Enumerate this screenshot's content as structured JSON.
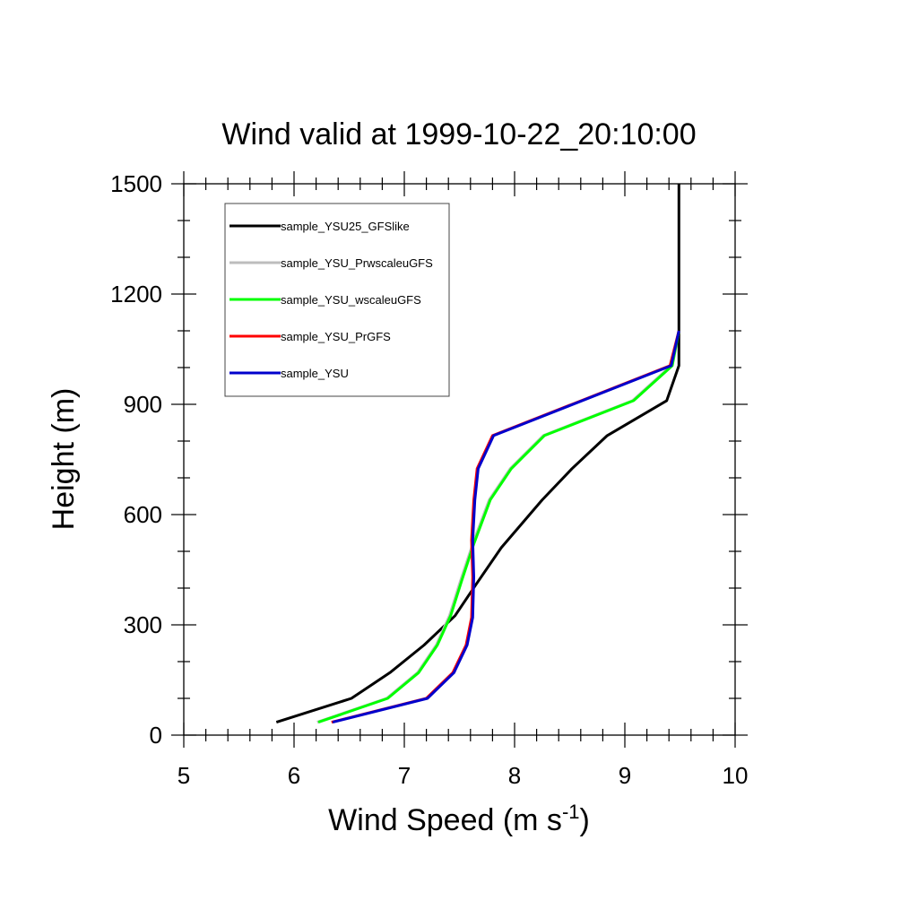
{
  "chart_data": {
    "type": "line",
    "title": "Wind valid at 1999-10-22_20:10:00",
    "xlabel": "Wind Speed (m s",
    "xlabel_superscript": "-1",
    "xlabel_suffix": ")",
    "ylabel": "Height (m)",
    "xlim": [
      5,
      10
    ],
    "ylim": [
      0,
      1500
    ],
    "x_ticks": [
      5,
      6,
      7,
      8,
      9,
      10
    ],
    "y_ticks": [
      0,
      300,
      600,
      900,
      1200,
      1500
    ],
    "x_minor_step": 0.2,
    "y_minor_step": 100,
    "grid": false,
    "legend_position": "top-left",
    "series": [
      {
        "name": "sample_YSU25_GFSlike",
        "color": "#000000",
        "points": [
          [
            5.84,
            35
          ],
          [
            6.52,
            100
          ],
          [
            6.87,
            170
          ],
          [
            7.18,
            245
          ],
          [
            7.46,
            325
          ],
          [
            7.65,
            410
          ],
          [
            7.88,
            510
          ],
          [
            8.25,
            640
          ],
          [
            8.52,
            725
          ],
          [
            8.84,
            815
          ],
          [
            9.38,
            910
          ],
          [
            9.49,
            1005
          ],
          [
            9.49,
            1100
          ],
          [
            9.49,
            1500
          ]
        ]
      },
      {
        "name": "sample_YSU_PrwscaleuGFS",
        "color": "#bdbdbd",
        "points": [
          [
            6.21,
            35
          ],
          [
            6.84,
            100
          ],
          [
            7.12,
            170
          ],
          [
            7.29,
            245
          ],
          [
            7.41,
            325
          ],
          [
            7.51,
            420
          ],
          [
            7.62,
            520
          ],
          [
            7.77,
            640
          ],
          [
            7.96,
            725
          ],
          [
            8.26,
            815
          ],
          [
            9.07,
            910
          ],
          [
            9.42,
            1005
          ],
          [
            9.49,
            1100
          ]
        ]
      },
      {
        "name": "sample_YSU_wscaleuGFS",
        "color": "#00ff00",
        "points": [
          [
            6.22,
            35
          ],
          [
            6.85,
            100
          ],
          [
            7.13,
            170
          ],
          [
            7.3,
            245
          ],
          [
            7.42,
            325
          ],
          [
            7.52,
            420
          ],
          [
            7.63,
            520
          ],
          [
            7.78,
            640
          ],
          [
            7.97,
            725
          ],
          [
            8.27,
            815
          ],
          [
            9.08,
            910
          ],
          [
            9.43,
            1005
          ],
          [
            9.49,
            1100
          ]
        ]
      },
      {
        "name": "sample_YSU_PrGFS",
        "color": "#ff0000",
        "points": [
          [
            6.34,
            35
          ],
          [
            7.2,
            100
          ],
          [
            7.44,
            170
          ],
          [
            7.56,
            245
          ],
          [
            7.61,
            320
          ],
          [
            7.62,
            430
          ],
          [
            7.61,
            530
          ],
          [
            7.63,
            640
          ],
          [
            7.66,
            725
          ],
          [
            7.8,
            815
          ],
          [
            9.41,
            1005
          ],
          [
            9.49,
            1100
          ]
        ]
      },
      {
        "name": "sample_YSU",
        "color": "#0000cc",
        "points": [
          [
            6.35,
            35
          ],
          [
            7.21,
            100
          ],
          [
            7.45,
            170
          ],
          [
            7.57,
            245
          ],
          [
            7.62,
            320
          ],
          [
            7.63,
            430
          ],
          [
            7.62,
            530
          ],
          [
            7.64,
            640
          ],
          [
            7.67,
            725
          ],
          [
            7.81,
            815
          ],
          [
            9.42,
            1005
          ],
          [
            9.49,
            1100
          ]
        ]
      }
    ]
  }
}
